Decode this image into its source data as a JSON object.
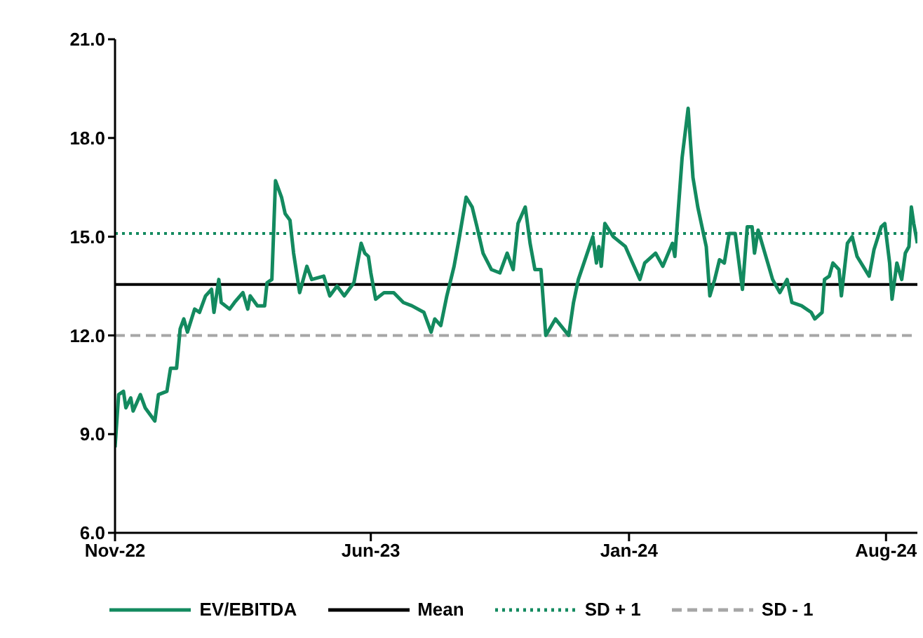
{
  "chart_data": {
    "type": "line",
    "x": [
      "2022-11-01",
      "2022-11-04",
      "2022-11-08",
      "2022-11-10",
      "2022-11-14",
      "2022-11-16",
      "2022-11-22",
      "2022-11-26",
      "2022-12-04",
      "2022-12-07",
      "2022-12-14",
      "2022-12-17",
      "2022-12-22",
      "2022-12-25",
      "2022-12-28",
      "2022-12-31",
      "2023-01-06",
      "2023-01-10",
      "2023-01-15",
      "2023-01-20",
      "2023-01-22",
      "2023-01-26",
      "2023-01-28",
      "2023-02-04",
      "2023-02-08",
      "2023-02-15",
      "2023-02-19",
      "2023-02-21",
      "2023-02-27",
      "2023-03-05",
      "2023-03-07",
      "2023-03-11",
      "2023-03-14",
      "2023-03-19",
      "2023-03-22",
      "2023-03-26",
      "2023-03-29",
      "2023-04-03",
      "2023-04-09",
      "2023-04-13",
      "2023-04-23",
      "2023-04-28",
      "2023-05-04",
      "2023-05-10",
      "2023-05-18",
      "2023-05-24",
      "2023-05-27",
      "2023-05-30",
      "2023-06-01",
      "2023-06-05",
      "2023-06-12",
      "2023-06-20",
      "2023-06-28",
      "2023-07-05",
      "2023-07-15",
      "2023-07-21",
      "2023-07-24",
      "2023-07-29",
      "2023-08-03",
      "2023-08-09",
      "2023-08-13",
      "2023-08-19",
      "2023-08-24",
      "2023-08-28",
      "2023-09-02",
      "2023-09-09",
      "2023-09-16",
      "2023-09-22",
      "2023-09-27",
      "2023-10-01",
      "2023-10-07",
      "2023-10-11",
      "2023-10-15",
      "2023-10-20",
      "2023-10-24",
      "2023-11-01",
      "2023-11-12",
      "2023-11-16",
      "2023-11-20",
      "2023-12-02",
      "2023-12-05",
      "2023-12-07",
      "2023-12-09",
      "2023-12-12",
      "2023-12-19",
      "2023-12-29",
      "2024-01-04",
      "2024-01-10",
      "2024-01-14",
      "2024-01-23",
      "2024-01-29",
      "2024-02-06",
      "2024-02-08",
      "2024-02-14",
      "2024-02-19",
      "2024-02-23",
      "2024-02-27",
      "2024-03-05",
      "2024-03-08",
      "2024-03-12",
      "2024-03-16",
      "2024-03-20",
      "2024-03-24",
      "2024-03-29",
      "2024-04-04",
      "2024-04-08",
      "2024-04-12",
      "2024-04-14",
      "2024-04-17",
      "2024-04-25",
      "2024-04-29",
      "2024-05-05",
      "2024-05-11",
      "2024-05-15",
      "2024-05-23",
      "2024-05-31",
      "2024-06-03",
      "2024-06-09",
      "2024-06-11",
      "2024-06-15",
      "2024-06-18",
      "2024-06-23",
      "2024-06-25",
      "2024-06-30",
      "2024-07-04",
      "2024-07-08",
      "2024-07-18",
      "2024-07-22",
      "2024-07-28",
      "2024-07-31",
      "2024-08-04",
      "2024-08-06",
      "2024-08-10",
      "2024-08-14",
      "2024-08-17",
      "2024-08-20",
      "2024-08-22",
      "2024-08-24",
      "2024-08-27"
    ],
    "series": [
      {
        "name": "EV/EBITDA",
        "color": "#138a5f",
        "values": [
          8.6,
          10.2,
          10.3,
          9.8,
          10.1,
          9.7,
          10.2,
          9.8,
          9.4,
          10.2,
          10.3,
          11.0,
          11.0,
          12.2,
          12.5,
          12.1,
          12.8,
          12.7,
          13.2,
          13.4,
          12.7,
          13.7,
          13.0,
          12.8,
          13.0,
          13.3,
          12.8,
          13.2,
          12.9,
          12.9,
          13.6,
          13.7,
          16.7,
          16.2,
          15.7,
          15.5,
          14.5,
          13.3,
          14.1,
          13.7,
          13.8,
          13.2,
          13.5,
          13.2,
          13.6,
          14.8,
          14.5,
          14.4,
          13.9,
          13.1,
          13.3,
          13.3,
          13.0,
          12.9,
          12.7,
          12.1,
          12.5,
          12.3,
          13.2,
          14.1,
          14.9,
          16.2,
          15.9,
          15.3,
          14.5,
          14.0,
          13.9,
          14.5,
          14.0,
          15.4,
          15.9,
          14.8,
          14.0,
          14.0,
          12.0,
          12.5,
          12.0,
          13.0,
          13.7,
          15.0,
          14.2,
          14.7,
          14.1,
          15.4,
          15.0,
          14.7,
          14.2,
          13.7,
          14.2,
          14.5,
          14.1,
          14.8,
          14.4,
          17.4,
          18.9,
          16.8,
          15.9,
          14.7,
          13.2,
          13.7,
          14.3,
          14.2,
          15.1,
          15.1,
          13.4,
          15.3,
          15.3,
          14.5,
          15.2,
          14.2,
          13.7,
          13.3,
          13.7,
          13.0,
          12.9,
          12.7,
          12.5,
          12.7,
          13.7,
          13.8,
          14.2,
          14.0,
          13.2,
          14.8,
          15.0,
          14.4,
          13.8,
          14.6,
          15.3,
          15.4,
          14.2,
          13.1,
          14.2,
          13.7,
          14.5,
          14.7,
          15.9,
          15.4,
          14.8
        ]
      }
    ],
    "ref_lines": [
      {
        "axis": "y",
        "value": 13.55,
        "label": "Mean",
        "color": "#000000",
        "line_style": "solid"
      },
      {
        "axis": "y",
        "value": 15.1,
        "label": "SD + 1",
        "color": "#138a5f",
        "line_style": "dotted"
      },
      {
        "axis": "y",
        "value": 12.0,
        "label": "SD - 1",
        "color": "#a6a6a6",
        "line_style": "dashed"
      }
    ],
    "xlim": [
      "2022-11-01",
      "2024-08-27"
    ],
    "xticks": [
      {
        "value": "2022-11-01",
        "label": "Nov-22"
      },
      {
        "value": "2023-06-01",
        "label": "Jun-23"
      },
      {
        "value": "2024-01-01",
        "label": "Jan-24"
      },
      {
        "value": "2024-08-01",
        "label": "Aug-24"
      }
    ],
    "ylim": [
      6,
      21
    ],
    "yticks": [
      {
        "value": 6,
        "label": "6.0"
      },
      {
        "value": 9,
        "label": "9.0"
      },
      {
        "value": 12,
        "label": "12.0"
      },
      {
        "value": 15,
        "label": "15.0"
      },
      {
        "value": 18,
        "label": "18.0"
      },
      {
        "value": 21,
        "label": "21.0"
      }
    ],
    "grid": false,
    "legend": "bottom",
    "marker": "none",
    "line_style": "solid"
  }
}
